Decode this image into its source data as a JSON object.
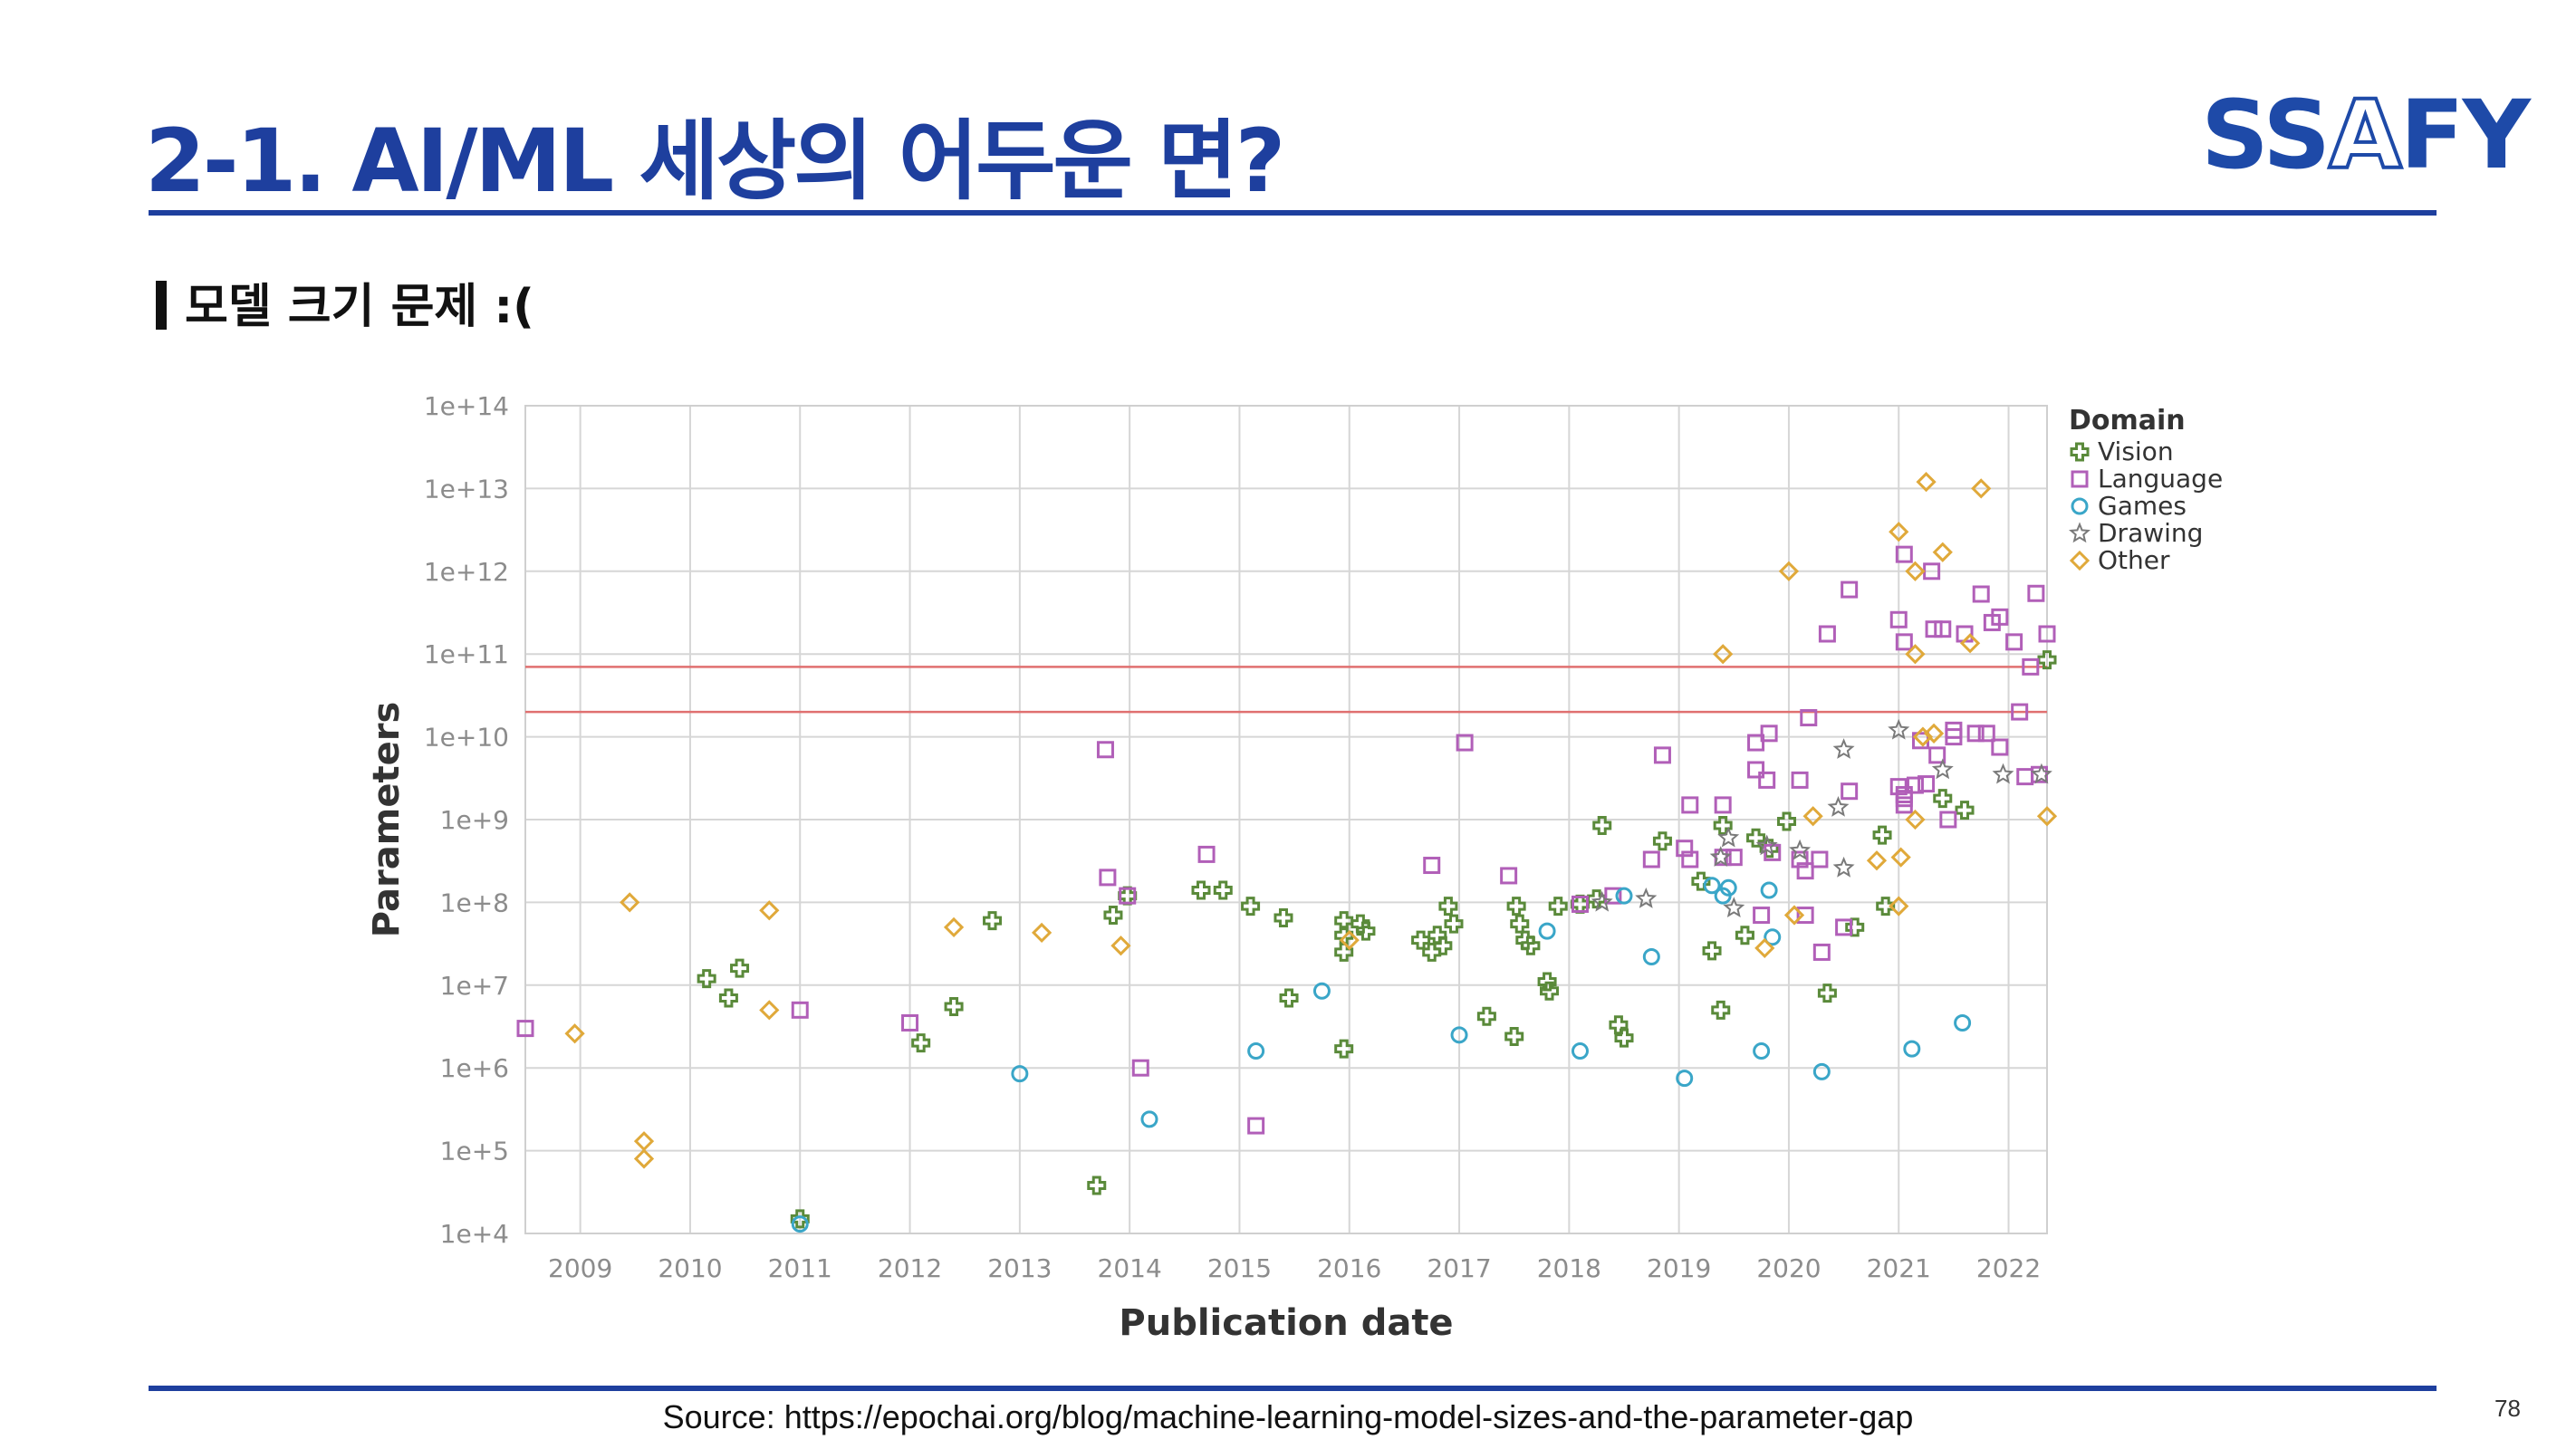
{
  "slide": {
    "title": "2-1. AI/ML 세상의 어두운 면?",
    "subtitle": "모델 크기 문제 :(",
    "logo": {
      "part1": "SS",
      "part2": "A",
      "part3": "FY"
    },
    "source": "Source: https://epochai.org/blog/machine-learning-model-sizes-and-the-parameter-gap",
    "page_number": "78"
  },
  "colors": {
    "brand": "#1e3f9e",
    "vision": "#5a8a3a",
    "language": "#b15fb8",
    "games": "#3aa6c8",
    "drawing": "#7a7a7a",
    "other": "#e0a93a",
    "reference_line": "#e07070"
  },
  "chart_data": {
    "type": "scatter",
    "xlabel": "Publication date",
    "ylabel": "Parameters",
    "x_scale": "time",
    "y_scale": "log",
    "xlim": [
      2008.5,
      2022.35
    ],
    "ylim": [
      10000,
      100000000000000
    ],
    "x_ticks": [
      "2009",
      "2010",
      "2011",
      "2012",
      "2013",
      "2014",
      "2015",
      "2016",
      "2017",
      "2018",
      "2019",
      "2020",
      "2021",
      "2022"
    ],
    "y_ticks": [
      "1e+4",
      "1e+5",
      "1e+6",
      "1e+7",
      "1e+8",
      "1e+9",
      "1e+10",
      "1e+11",
      "1e+12",
      "1e+13",
      "1e+14"
    ],
    "grid": true,
    "legend": {
      "title": "Domain",
      "position": "top-right"
    },
    "reference_lines_y": [
      70000000000,
      20000000000
    ],
    "series": [
      {
        "name": "Vision",
        "marker": "cross",
        "points": [
          [
            2010.15,
            12000000
          ],
          [
            2010.35,
            7000000
          ],
          [
            2010.45,
            16000000
          ],
          [
            2011.0,
            15000
          ],
          [
            2012.1,
            2000000
          ],
          [
            2012.4,
            5500000
          ],
          [
            2012.75,
            60000000
          ],
          [
            2013.7,
            38000
          ],
          [
            2013.85,
            70000000
          ],
          [
            2013.98,
            120000000
          ],
          [
            2014.65,
            140000000
          ],
          [
            2014.85,
            140000000
          ],
          [
            2015.1,
            90000000
          ],
          [
            2015.4,
            65000000
          ],
          [
            2015.45,
            7000000
          ],
          [
            2015.95,
            60000000
          ],
          [
            2015.95,
            40000000
          ],
          [
            2015.95,
            25000000
          ],
          [
            2015.95,
            1700000
          ],
          [
            2016.1,
            55000000
          ],
          [
            2016.15,
            45000000
          ],
          [
            2016.65,
            35000000
          ],
          [
            2016.75,
            25000000
          ],
          [
            2016.8,
            40000000
          ],
          [
            2016.85,
            30000000
          ],
          [
            2016.9,
            90000000
          ],
          [
            2016.95,
            55000000
          ],
          [
            2017.25,
            4200000
          ],
          [
            2017.5,
            2400000
          ],
          [
            2017.52,
            90000000
          ],
          [
            2017.55,
            55000000
          ],
          [
            2017.6,
            35000000
          ],
          [
            2017.65,
            30000000
          ],
          [
            2017.8,
            11000000
          ],
          [
            2017.82,
            8500000
          ],
          [
            2017.9,
            90000000
          ],
          [
            2018.1,
            95000000
          ],
          [
            2018.25,
            110000000
          ],
          [
            2018.3,
            850000000
          ],
          [
            2018.45,
            3300000
          ],
          [
            2018.5,
            2300000
          ],
          [
            2018.85,
            550000000
          ],
          [
            2019.2,
            180000000
          ],
          [
            2019.3,
            26000000
          ],
          [
            2019.38,
            5000000
          ],
          [
            2019.4,
            850000000
          ],
          [
            2019.6,
            40000000
          ],
          [
            2019.7,
            600000000
          ],
          [
            2019.82,
            450000000
          ],
          [
            2019.98,
            950000000
          ],
          [
            2020.35,
            8000000
          ],
          [
            2020.6,
            50000000
          ],
          [
            2020.85,
            650000000
          ],
          [
            2020.88,
            90000000
          ],
          [
            2021.4,
            1800000000
          ],
          [
            2021.6,
            1300000000
          ],
          [
            2022.35,
            85000000000
          ]
        ]
      },
      {
        "name": "Language",
        "marker": "square",
        "points": [
          [
            2008.5,
            3000000
          ],
          [
            2011.0,
            5000000
          ],
          [
            2012.0,
            3500000
          ],
          [
            2013.78,
            7000000000
          ],
          [
            2013.8,
            200000000
          ],
          [
            2013.98,
            120000000
          ],
          [
            2014.1,
            1000000
          ],
          [
            2014.7,
            380000000
          ],
          [
            2015.15,
            200000
          ],
          [
            2016.75,
            280000000
          ],
          [
            2017.05,
            8500000000
          ],
          [
            2017.45,
            210000000
          ],
          [
            2018.1,
            95000000
          ],
          [
            2018.4,
            120000000
          ],
          [
            2018.75,
            330000000
          ],
          [
            2018.85,
            6000000000
          ],
          [
            2019.05,
            450000000
          ],
          [
            2019.1,
            330000000
          ],
          [
            2019.1,
            1500000000
          ],
          [
            2019.4,
            1500000000
          ],
          [
            2019.4,
            350000000
          ],
          [
            2019.5,
            350000000
          ],
          [
            2019.7,
            8500000000
          ],
          [
            2019.7,
            4000000000
          ],
          [
            2019.75,
            70000000
          ],
          [
            2019.8,
            3000000000
          ],
          [
            2019.82,
            11000000000
          ],
          [
            2019.85,
            400000000
          ],
          [
            2020.1,
            3000000000
          ],
          [
            2020.1,
            330000000
          ],
          [
            2020.15,
            70000000
          ],
          [
            2020.15,
            240000000
          ],
          [
            2020.18,
            17000000000
          ],
          [
            2020.28,
            330000000
          ],
          [
            2020.3,
            25000000
          ],
          [
            2020.35,
            175000000000
          ],
          [
            2020.5,
            50000000
          ],
          [
            2020.55,
            600000000000
          ],
          [
            2020.55,
            2200000000
          ],
          [
            2021.0,
            260000000000
          ],
          [
            2021.0,
            2500000000
          ],
          [
            2021.05,
            1600000000000
          ],
          [
            2021.05,
            140000000000
          ],
          [
            2021.05,
            2000000000
          ],
          [
            2021.05,
            1800000000
          ],
          [
            2021.05,
            1500000000
          ],
          [
            2021.15,
            2600000000
          ],
          [
            2021.2,
            9000000000
          ],
          [
            2021.25,
            2700000000
          ],
          [
            2021.3,
            1000000000000
          ],
          [
            2021.32,
            200000000000
          ],
          [
            2021.35,
            6000000000
          ],
          [
            2021.4,
            200000000000
          ],
          [
            2021.45,
            1000000000
          ],
          [
            2021.5,
            12000000000
          ],
          [
            2021.5,
            10000000000
          ],
          [
            2021.6,
            175000000000
          ],
          [
            2021.7,
            11000000000
          ],
          [
            2021.75,
            530000000000
          ],
          [
            2021.8,
            11000000000
          ],
          [
            2021.85,
            240000000000
          ],
          [
            2021.92,
            280000000000
          ],
          [
            2021.92,
            7500000000
          ],
          [
            2022.05,
            140000000000
          ],
          [
            2022.1,
            20000000000
          ],
          [
            2022.15,
            3300000000
          ],
          [
            2022.2,
            70000000000
          ],
          [
            2022.25,
            540000000000
          ],
          [
            2022.28,
            3500000000
          ],
          [
            2022.35,
            175000000000
          ]
        ]
      },
      {
        "name": "Games",
        "marker": "circle",
        "points": [
          [
            2011.0,
            13000
          ],
          [
            2013.0,
            850000
          ],
          [
            2014.18,
            240000
          ],
          [
            2015.15,
            1600000
          ],
          [
            2015.75,
            8500000
          ],
          [
            2017.0,
            2500000
          ],
          [
            2017.8,
            45000000
          ],
          [
            2018.1,
            1600000
          ],
          [
            2018.5,
            120000000
          ],
          [
            2018.75,
            22000000
          ],
          [
            2019.05,
            750000
          ],
          [
            2019.3,
            160000000
          ],
          [
            2019.4,
            120000000
          ],
          [
            2019.45,
            150000000
          ],
          [
            2019.75,
            1600000
          ],
          [
            2019.82,
            140000000
          ],
          [
            2019.85,
            38000000
          ],
          [
            2020.3,
            900000
          ],
          [
            2021.12,
            1700000
          ],
          [
            2021.58,
            3500000
          ]
        ]
      },
      {
        "name": "Drawing",
        "marker": "star",
        "points": [
          [
            2018.3,
            100000000
          ],
          [
            2018.7,
            110000000
          ],
          [
            2019.38,
            350000000
          ],
          [
            2019.45,
            600000000
          ],
          [
            2019.5,
            85000000
          ],
          [
            2019.8,
            480000000
          ],
          [
            2020.1,
            420000000
          ],
          [
            2020.45,
            1400000000
          ],
          [
            2020.5,
            260000000
          ],
          [
            2020.5,
            7000000000
          ],
          [
            2021.0,
            12000000000
          ],
          [
            2021.4,
            4000000000
          ],
          [
            2021.95,
            3500000000
          ],
          [
            2022.3,
            3500000000
          ]
        ]
      },
      {
        "name": "Other",
        "marker": "diamond",
        "points": [
          [
            2008.95,
            2600000
          ],
          [
            2009.45,
            100000000
          ],
          [
            2009.58,
            130000
          ],
          [
            2009.58,
            80000
          ],
          [
            2010.72,
            80000000
          ],
          [
            2010.72,
            5000000
          ],
          [
            2012.4,
            50000000
          ],
          [
            2013.2,
            43000000
          ],
          [
            2013.92,
            30000000
          ],
          [
            2016.0,
            35000000
          ],
          [
            2019.4,
            100000000000
          ],
          [
            2019.78,
            28000000
          ],
          [
            2020.0,
            1000000000000
          ],
          [
            2020.05,
            70000000
          ],
          [
            2020.22,
            1100000000
          ],
          [
            2020.8,
            320000000
          ],
          [
            2021.0,
            3000000000000
          ],
          [
            2021.0,
            90000000
          ],
          [
            2021.02,
            350000000
          ],
          [
            2021.15,
            1000000000000
          ],
          [
            2021.15,
            100000000000
          ],
          [
            2021.15,
            1000000000
          ],
          [
            2021.22,
            10000000000
          ],
          [
            2021.25,
            12000000000000
          ],
          [
            2021.32,
            11000000000
          ],
          [
            2021.4,
            1700000000000
          ],
          [
            2021.65,
            135000000000
          ],
          [
            2021.75,
            10000000000000
          ],
          [
            2022.35,
            1100000000
          ]
        ]
      }
    ]
  }
}
